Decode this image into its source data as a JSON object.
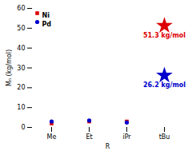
{
  "chart_data": {
    "type": "scatter",
    "categories": [
      "Me",
      "Et",
      "iPr",
      "tBu"
    ],
    "xlabel": "R",
    "ylabel": "Mₙ (kg/mol)",
    "series": [
      {
        "name": "Ni",
        "color": "#dd0000",
        "marker": "square",
        "values": [
          2.0,
          3.0,
          3.0,
          null
        ]
      },
      {
        "name": "Pd",
        "color": "#0000cc",
        "marker": "circle",
        "values": [
          3.0,
          3.5,
          2.5,
          null
        ]
      },
      {
        "color": "#dd0000",
        "marker": "star",
        "values": [
          null,
          null,
          null,
          51.3
        ]
      },
      {
        "color": "#0000cc",
        "marker": "star",
        "values": [
          null,
          null,
          null,
          26.2
        ]
      }
    ],
    "annotations": [
      {
        "text": "51.3 kg/mol",
        "x": "tBu",
        "y": 51.3,
        "color": "#dd0000"
      },
      {
        "text": "26.2 kg/mol",
        "x": "tBu",
        "y": 26.2,
        "color": "#0000cc"
      }
    ],
    "ylim": [
      0,
      60
    ],
    "yticks": [
      0,
      10,
      20,
      30,
      40,
      50,
      60
    ],
    "legend": "upper left",
    "grid": false
  }
}
